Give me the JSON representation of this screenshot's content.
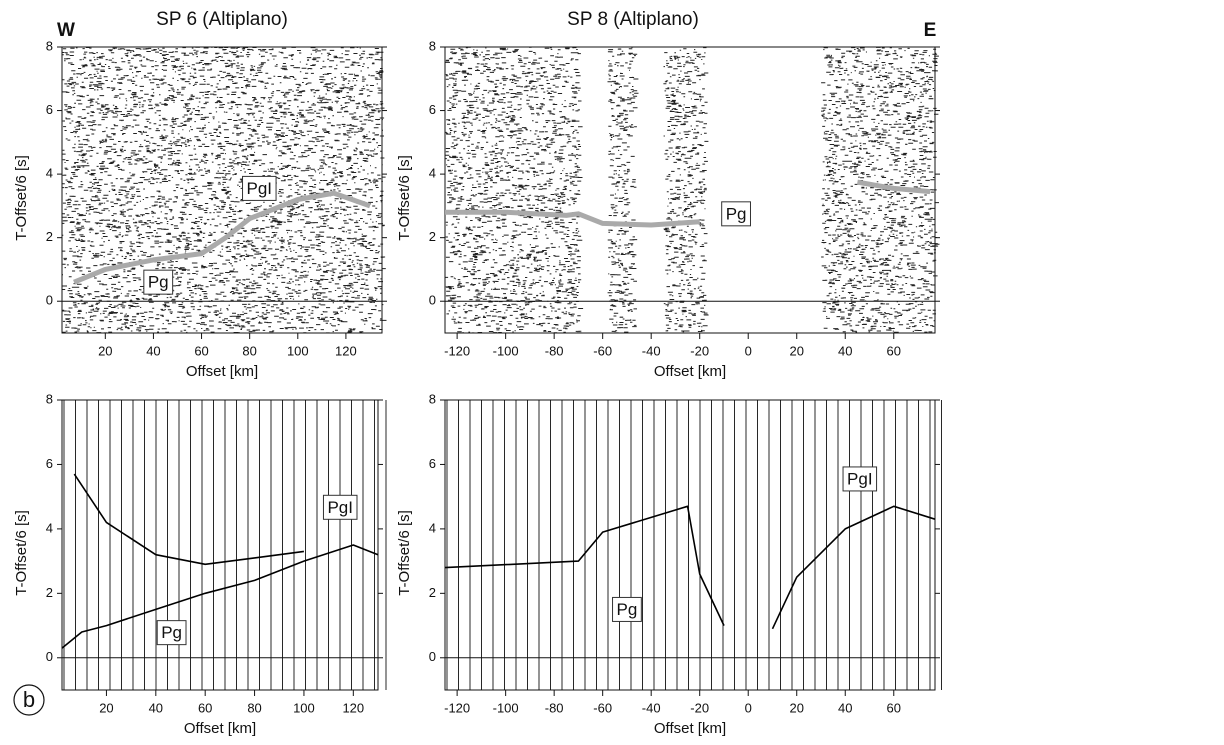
{
  "figure_label": "b",
  "chart_data": [
    {
      "type": "line",
      "title": "SP 6 (Altiplano)",
      "side_label": "W",
      "xlabel": "Offset [km]",
      "ylabel": "T-Offset/6 [s]",
      "xlim": [
        2,
        135
      ],
      "ylim": [
        -1,
        8
      ],
      "xticks": [
        20,
        40,
        60,
        80,
        100,
        120
      ],
      "yticks": [
        0,
        2,
        4,
        6,
        8
      ],
      "annotations": [
        "PgI",
        "Pg"
      ],
      "series": [
        {
          "color": "#aaaaaa",
          "x": [
            7,
            20,
            40,
            60,
            70,
            80,
            100,
            115,
            130
          ],
          "values": [
            0.6,
            1.0,
            1.3,
            1.5,
            2.0,
            2.6,
            3.2,
            3.4,
            3.0
          ]
        }
      ]
    },
    {
      "type": "line",
      "title": "SP 8 (Altiplano)",
      "side_label": "E",
      "xlabel": "Offset [km]",
      "ylabel": "T-Offset/6 [s]",
      "xlim": [
        -125,
        77
      ],
      "ylim": [
        -1,
        8
      ],
      "xticks": [
        -120,
        -100,
        -80,
        -60,
        -40,
        -20,
        0,
        20,
        40,
        60
      ],
      "yticks": [
        0,
        2,
        4,
        6,
        8
      ],
      "annotations": [
        "Pg"
      ],
      "series": [
        {
          "color": "#aaaaaa",
          "x": [
            -125,
            -100,
            -75,
            -70,
            -60,
            -40,
            -20,
            10,
            45,
            60,
            75
          ],
          "values": [
            2.8,
            2.8,
            2.7,
            2.75,
            2.45,
            2.4,
            2.5,
            null,
            3.75,
            3.55,
            3.45
          ]
        }
      ]
    },
    {
      "type": "line",
      "xlabel": "Offset [km]",
      "ylabel": "T-Offset/6 [s]",
      "xlim": [
        2,
        130
      ],
      "ylim": [
        -1,
        8
      ],
      "xticks": [
        20,
        40,
        60,
        80,
        100,
        120
      ],
      "yticks": [
        0,
        2,
        4,
        6,
        8
      ],
      "annotations": [
        "PgI",
        "Pg"
      ],
      "series": [
        {
          "color": "#000000",
          "x": [
            2,
            10,
            20,
            40,
            60,
            80,
            100,
            120,
            130
          ],
          "values": [
            0.3,
            0.8,
            1.0,
            1.5,
            2.0,
            2.4,
            3.0,
            3.5,
            3.2
          ]
        },
        {
          "color": "#000000",
          "x": [
            7,
            20,
            40,
            60,
            80,
            100
          ],
          "values": [
            5.7,
            4.2,
            3.2,
            2.9,
            3.1,
            3.3
          ]
        }
      ]
    },
    {
      "type": "line",
      "xlabel": "Offset [km]",
      "ylabel": "T-Offset/6 [s]",
      "xlim": [
        -125,
        77
      ],
      "ylim": [
        -1,
        8
      ],
      "xticks": [
        -120,
        -100,
        -80,
        -60,
        -40,
        -20,
        0,
        20,
        40,
        60
      ],
      "yticks": [
        0,
        2,
        4,
        6,
        8
      ],
      "annotations": [
        "PgI",
        "Pg"
      ],
      "series": [
        {
          "color": "#000000",
          "x": [
            -125,
            -70,
            -60,
            -25,
            -20,
            -10,
            0,
            10,
            20,
            40,
            60,
            77
          ],
          "values": [
            2.8,
            3.0,
            3.9,
            4.7,
            2.6,
            1.0,
            null,
            0.9,
            2.5,
            4.0,
            4.7,
            4.3
          ]
        }
      ]
    }
  ]
}
